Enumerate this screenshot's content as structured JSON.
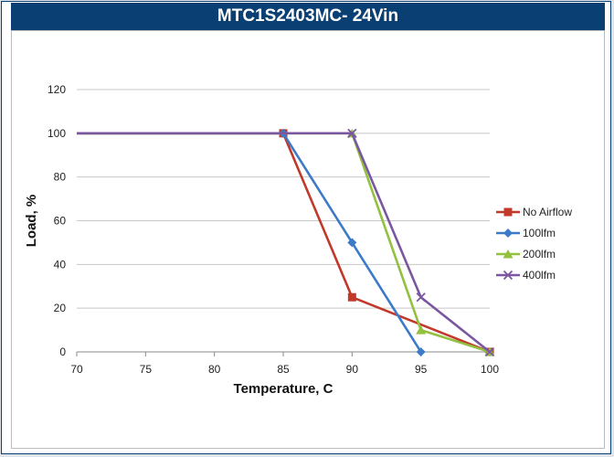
{
  "title": "MTC1S2403MC- 24Vin",
  "chart_data": {
    "type": "line",
    "title": "MTC1S2403MC- 24Vin",
    "xlabel": "Temperature, C",
    "ylabel": "Load, %",
    "x": [
      70,
      75,
      80,
      85,
      90,
      95,
      100
    ],
    "xlim": [
      70,
      100
    ],
    "ylim": [
      0,
      120
    ],
    "xticks": [
      "70",
      "75",
      "80",
      "85",
      "90",
      "95",
      "100"
    ],
    "yticks": [
      "0",
      "20",
      "40",
      "60",
      "80",
      "100",
      "120"
    ],
    "grid": "horizontal",
    "legend": "right",
    "series": [
      {
        "name": "No Airflow",
        "color": "#c0392b",
        "marker": "square",
        "points": [
          [
            70,
            100
          ],
          [
            85,
            100
          ],
          [
            90,
            25
          ],
          [
            100,
            0
          ]
        ]
      },
      {
        "name": "100lfm",
        "color": "#3d7ac8",
        "marker": "diamond",
        "points": [
          [
            70,
            100
          ],
          [
            85,
            100
          ],
          [
            90,
            50
          ],
          [
            95,
            0
          ]
        ]
      },
      {
        "name": "200lfm",
        "color": "#92c140",
        "marker": "triangle",
        "points": [
          [
            70,
            100
          ],
          [
            90,
            100
          ],
          [
            95,
            10
          ],
          [
            100,
            0
          ]
        ]
      },
      {
        "name": "400lfm",
        "color": "#7b57a0",
        "marker": "x",
        "points": [
          [
            70,
            100
          ],
          [
            90,
            100
          ],
          [
            95,
            25
          ],
          [
            100,
            0
          ]
        ]
      }
    ]
  }
}
